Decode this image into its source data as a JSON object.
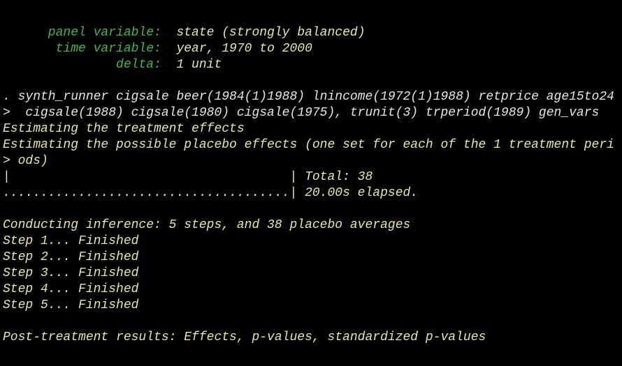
{
  "colors": {
    "label": "#3fb84a",
    "result": "#e8e6a6",
    "command": "#e6e6e6",
    "background": "#000000"
  },
  "xtset": [
    {
      "label": "      panel variable:",
      "value": "  state (strongly balanced)"
    },
    {
      "label": "       time variable:",
      "value": "  year, 1970 to 2000"
    },
    {
      "label": "               delta:",
      "value": "  1 unit"
    }
  ],
  "command": [
    ". synth_runner cigsale beer(1984(1)1988) lnincome(1972(1)1988) retprice age15to24",
    ">  cigsale(1988) cigsale(1980) cigsale(1975), trunit(3) trperiod(1989) gen_vars"
  ],
  "output": [
    "Estimating the treatment effects",
    "Estimating the possible placebo effects (one set for each of the 1 treatment peri",
    "> ods)",
    "|                                     | Total: 38",
    "......................................| 20.00s elapsed.",
    "",
    "Conducting inference: 5 steps, and 38 placebo averages",
    "Step 1... Finished",
    "Step 2... Finished",
    "Step 3... Finished",
    "Step 4... Finished",
    "Step 5... Finished",
    "",
    "Post-treatment results: Effects, p-values, standardized p-values"
  ]
}
